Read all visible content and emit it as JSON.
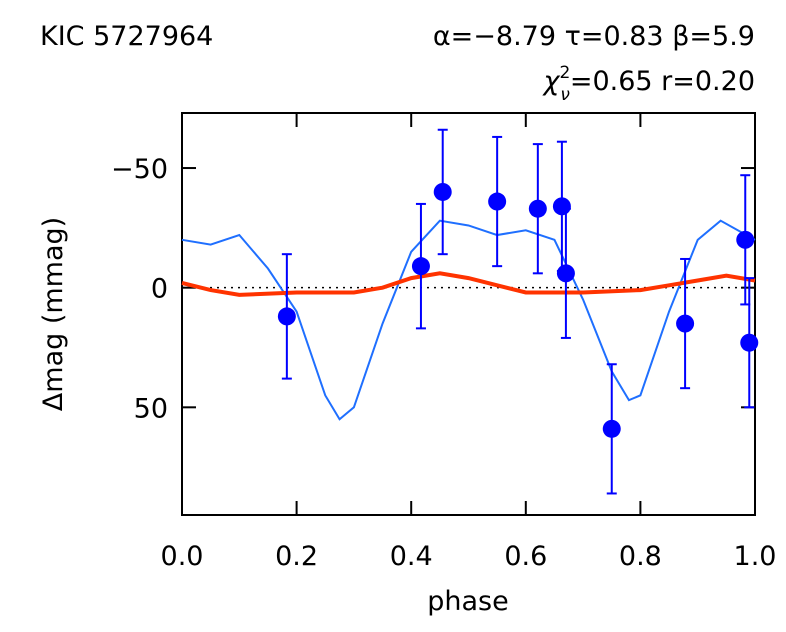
{
  "chart_data": {
    "type": "scatter",
    "title": "KIC 5727964",
    "annotations": [
      "α=−8.79  τ=0.83  β=5.9",
      "χ",
      "2",
      "ν",
      "=0.65  r=0.20"
    ],
    "xlabel": "phase",
    "ylabel": "Δmag (mmag)",
    "x": [
      0.183,
      0.417,
      0.455,
      0.55,
      0.621,
      0.663,
      0.67,
      0.75,
      0.878,
      0.983,
      0.99
    ],
    "values": [
      12,
      -9,
      -40,
      -36,
      -33,
      -34,
      -6,
      59,
      15,
      -20,
      23
    ],
    "errors": [
      26,
      26,
      26,
      27,
      27,
      27,
      27,
      27,
      27,
      27,
      27
    ],
    "color": "#0000ff",
    "curves": [
      {
        "type": "line",
        "color": "#1f6fff",
        "x": [
          0,
          0.05,
          0.1,
          0.15,
          0.2,
          0.25,
          0.275,
          0.3,
          0.35,
          0.4,
          0.45,
          0.5,
          0.55,
          0.6,
          0.65,
          0.7,
          0.75,
          0.78,
          0.8,
          0.85,
          0.9,
          0.94,
          1.0
        ],
        "values": [
          -20,
          -18,
          -22,
          -8,
          10,
          45,
          55,
          50,
          15,
          -15,
          -28,
          -26,
          -22,
          -24,
          -20,
          5,
          35,
          47,
          45,
          10,
          -20,
          -28,
          -20
        ]
      },
      {
        "type": "line",
        "color": "#ff3300",
        "x": [
          0,
          0.05,
          0.1,
          0.2,
          0.3,
          0.35,
          0.4,
          0.45,
          0.5,
          0.6,
          0.7,
          0.8,
          0.85,
          0.9,
          0.95,
          1.0
        ],
        "values": [
          -2,
          1,
          3,
          2,
          2,
          0,
          -4,
          -6,
          -4,
          2,
          2,
          1,
          -1,
          -3,
          -5,
          -3
        ]
      }
    ],
    "xlim": [
      0,
      1
    ],
    "ylim": [
      95,
      -73
    ],
    "xticks": [
      {
        "value": 0,
        "label": "0.0"
      },
      0.2,
      0.4,
      0.6,
      0.8,
      {
        "value": 1,
        "label": "1.0"
      }
    ],
    "yticks": [
      {
        "value": -50,
        "label": "−50"
      },
      0,
      50
    ]
  }
}
